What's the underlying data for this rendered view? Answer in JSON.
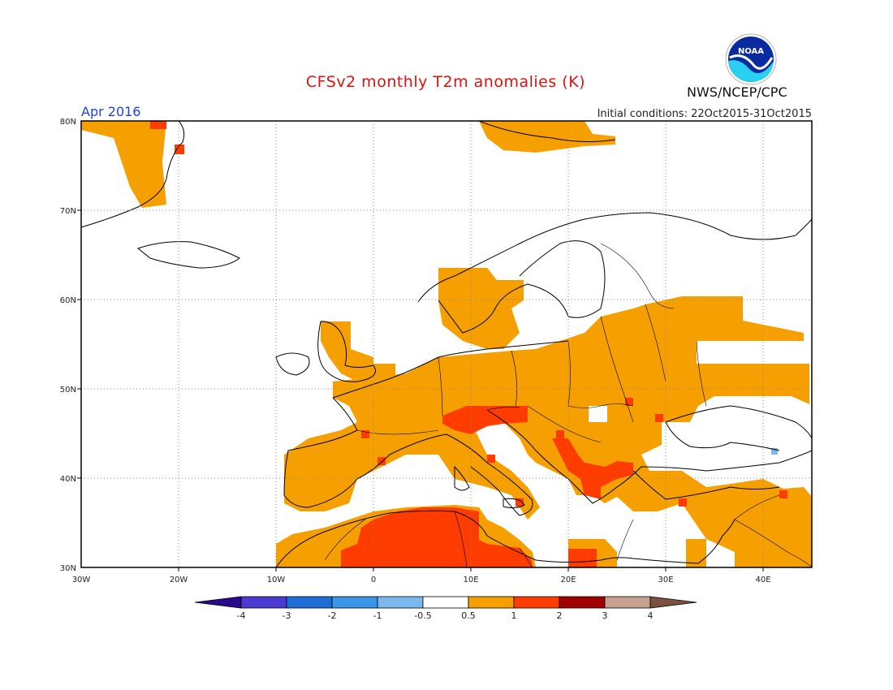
{
  "header": {
    "title": "CFSv2 monthly T2m anomalies (K)",
    "month": "Apr 2016",
    "initial_conditions": "Initial conditions: 22Oct2015-31Oct2015",
    "agency": "NWS/NCEP/CPC",
    "logo_text": "NOAA"
  },
  "map": {
    "lat_range": [
      30,
      80
    ],
    "lon_range": [
      -30,
      45
    ],
    "lat_ticks": [
      "30N",
      "40N",
      "50N",
      "60N",
      "70N",
      "80N"
    ],
    "lon_ticks": [
      "30W",
      "20W",
      "10W",
      "0",
      "10E",
      "20E",
      "30E",
      "40E"
    ]
  },
  "colorbar": {
    "labels": [
      "-4",
      "-3",
      "-2",
      "-1",
      "-0.5",
      "0.5",
      "1",
      "2",
      "3",
      "4"
    ],
    "colors": [
      "#2a0a8c",
      "#4a3ad0",
      "#1e6ed8",
      "#3a96e8",
      "#7ab8f0",
      "#ffffff",
      "#f5a000",
      "#ff3c00",
      "#a00000",
      "#c8a090",
      "#7a5040"
    ]
  }
}
